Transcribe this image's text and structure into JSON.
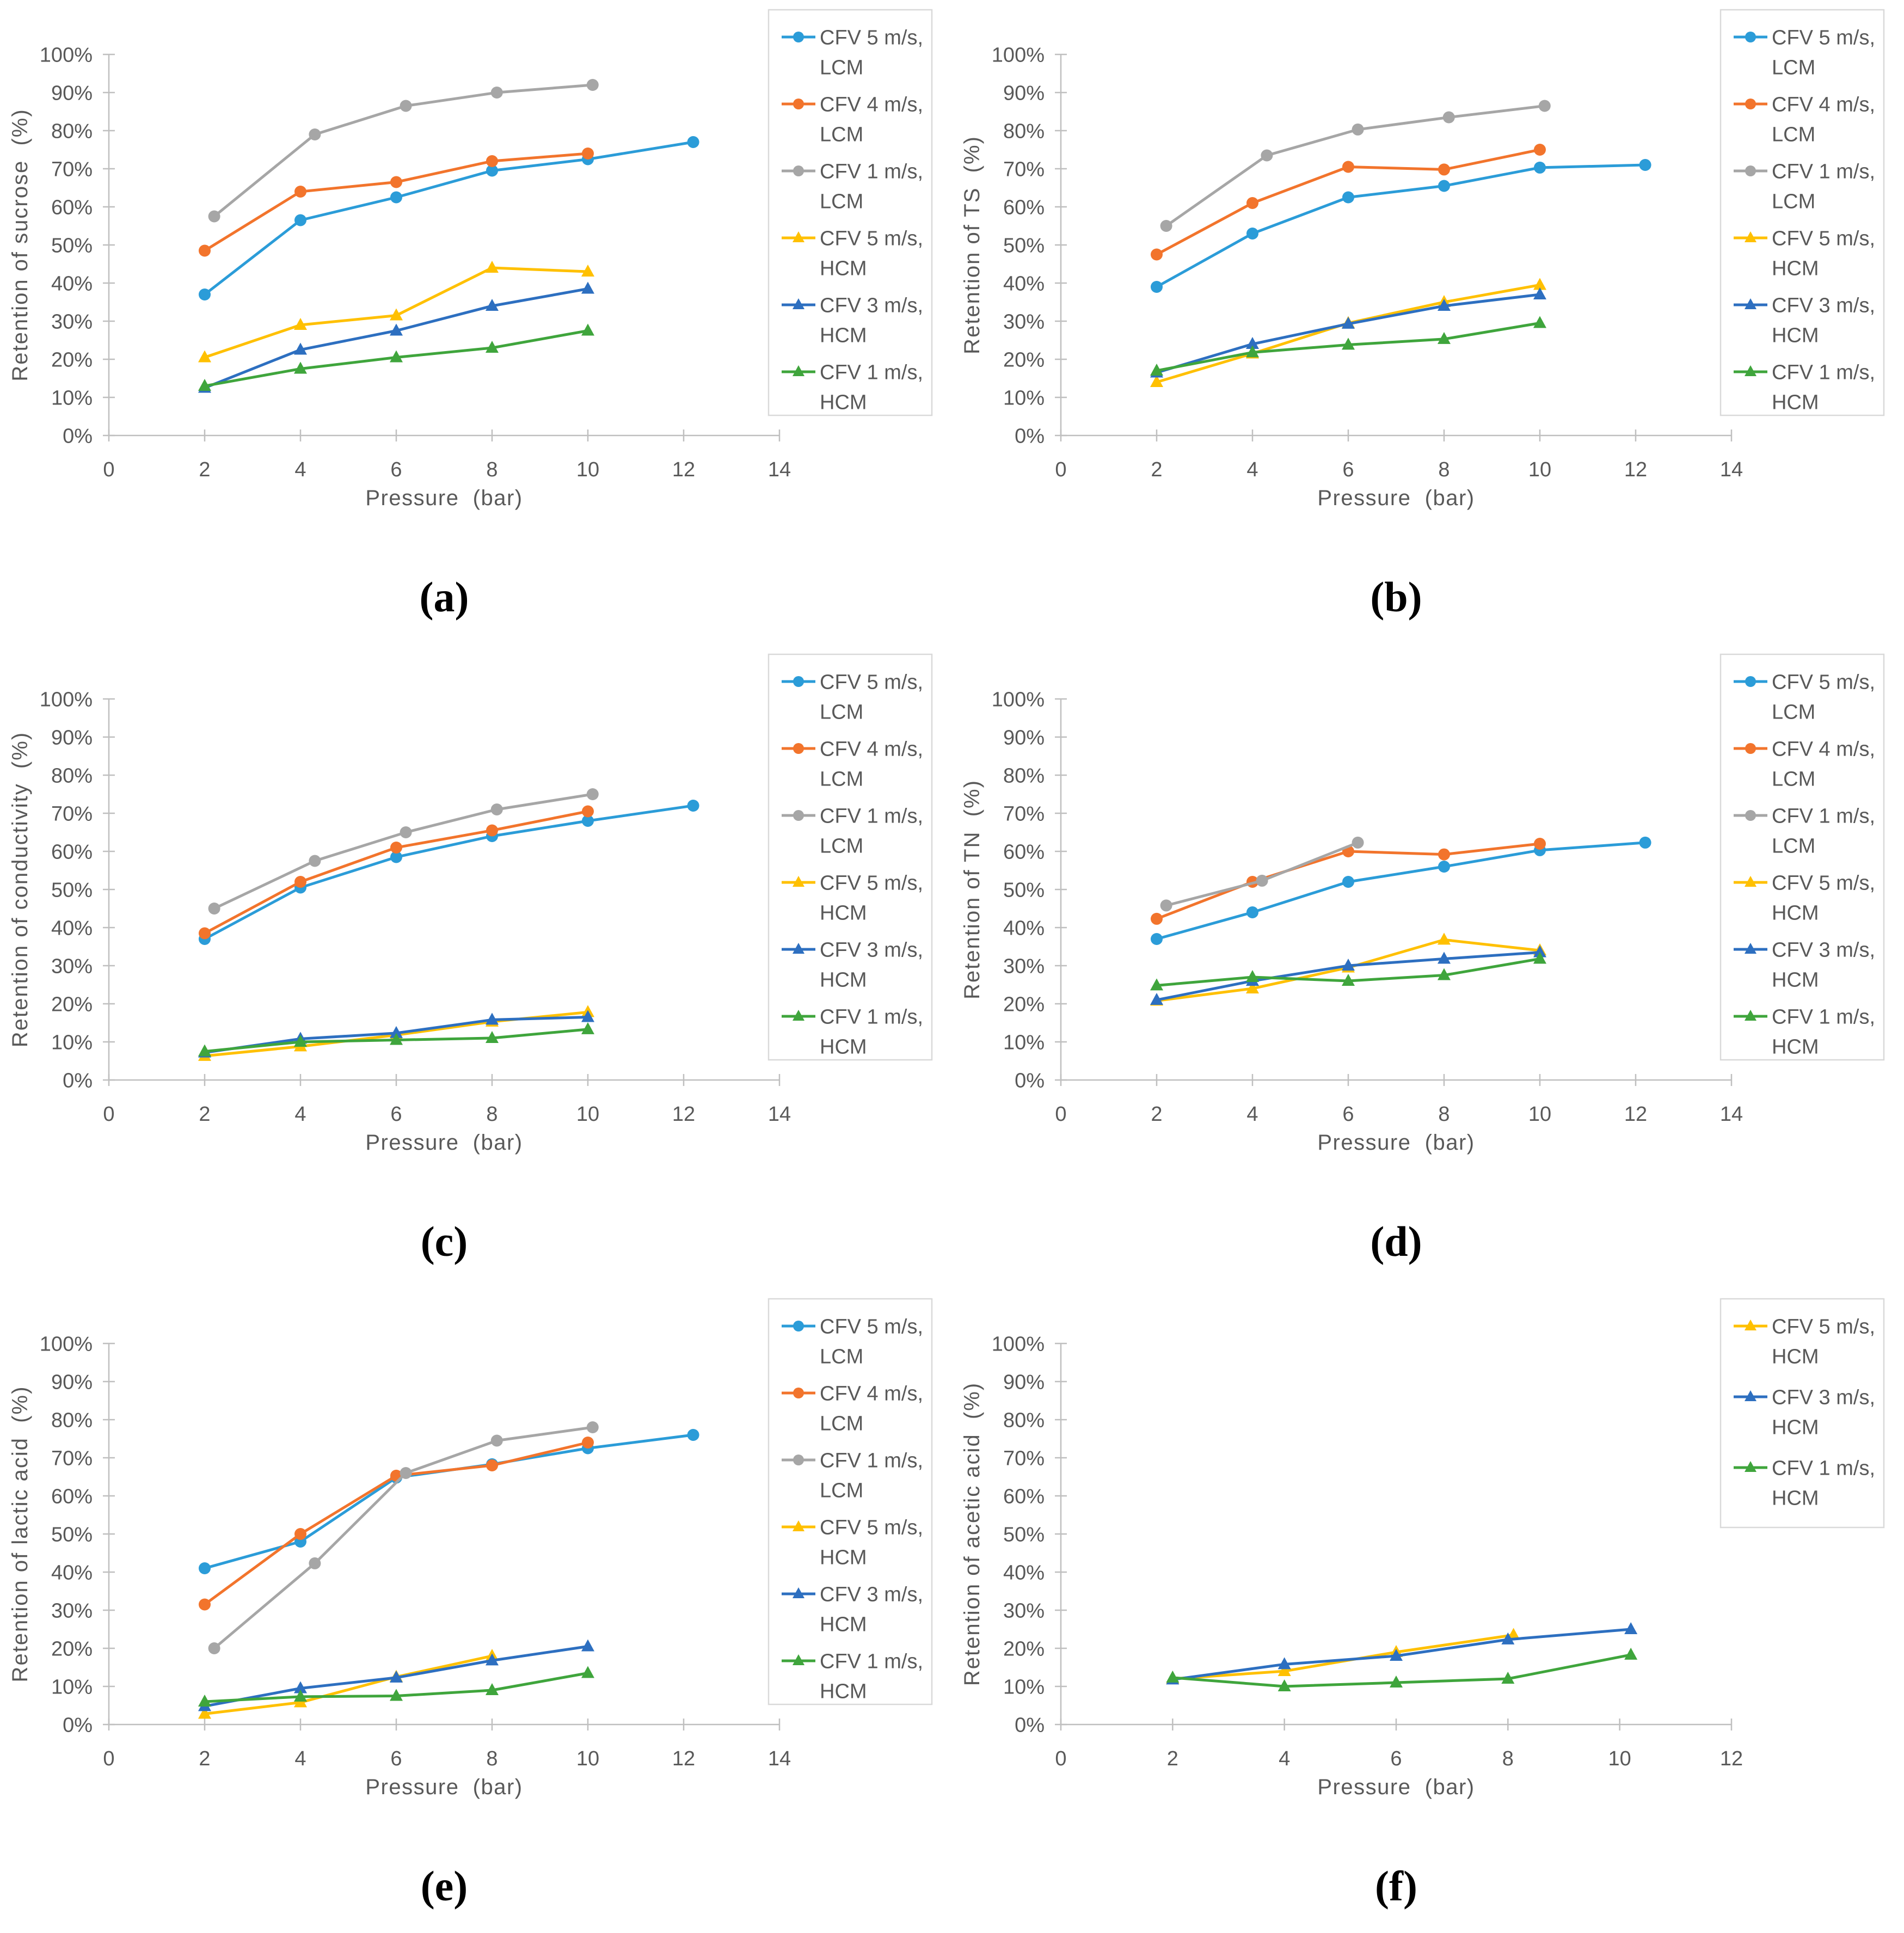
{
  "figure": {
    "description": "Six line charts of retention vs pressure for membrane filtration at different cross-flow velocities (CFV) with LCM and HCM membranes",
    "panel_letters": [
      "(a)",
      "(b)",
      "(c)",
      "(d)",
      "(e)",
      "(f)"
    ]
  },
  "style": {
    "background": "#FFFFFF",
    "axis_color": "#BFBFBF",
    "text_color": "#595959",
    "legend_border": "#D9D9D9",
    "caption_color": "#000000",
    "series_colors": {
      "cfv5_lcm": "#2B9CD8",
      "cfv4_lcm": "#F2742C",
      "cfv1_lcm": "#A6A6A6",
      "cfv5_hcm": "#FFC000",
      "cfv3_hcm": "#2D6FC0",
      "cfv1_hcm": "#3FA53C"
    }
  },
  "chart_data": [
    {
      "type": "line",
      "caption": "(a)",
      "ylabel": "Retention of sucrose  (%)",
      "xlabel": "Pressure  (bar)",
      "xlim": [
        0,
        14
      ],
      "ylim": [
        0,
        100
      ],
      "xticks": [
        "0",
        "2",
        "4",
        "6",
        "8",
        "10",
        "12",
        "14"
      ],
      "yticks": [
        "0%",
        "10%",
        "20%",
        "30%",
        "40%",
        "50%",
        "60%",
        "70%",
        "80%",
        "90%",
        "100%"
      ],
      "grid": false,
      "legend_position": "top-right",
      "series": [
        {
          "id": "cfv5-lcm",
          "name": "CFV 5 m/s, LCM",
          "label_line1": "CFV 5 m/s,",
          "label_line2": "LCM",
          "color": "#2B9CD8",
          "marker": "circle",
          "x": [
            2,
            4,
            6,
            8,
            10,
            12.2
          ],
          "y": [
            37,
            56.5,
            62.5,
            69.5,
            72.5,
            77
          ]
        },
        {
          "id": "cfv4-lcm",
          "name": "CFV 4 m/s, LCM",
          "label_line1": "CFV 4 m/s,",
          "label_line2": "LCM",
          "color": "#F2742C",
          "marker": "circle",
          "x": [
            2,
            4,
            6,
            8,
            10
          ],
          "y": [
            48.5,
            64,
            66.5,
            72,
            74
          ]
        },
        {
          "id": "cfv1-lcm",
          "name": "CFV 1 m/s, LCM",
          "label_line1": "CFV 1 m/s,",
          "label_line2": "LCM",
          "color": "#A6A6A6",
          "marker": "circle",
          "x": [
            2.2,
            4.3,
            6.2,
            8.1,
            10.1
          ],
          "y": [
            57.5,
            79,
            86.5,
            90,
            92
          ]
        },
        {
          "id": "cfv5-hcm",
          "name": "CFV 5 m/s, HCM",
          "label_line1": "CFV 5 m/s,",
          "label_line2": "HCM",
          "color": "#FFC000",
          "marker": "triangle",
          "x": [
            2,
            4,
            6,
            8,
            10
          ],
          "y": [
            20.5,
            29,
            31.5,
            44,
            43
          ]
        },
        {
          "id": "cfv3-hcm",
          "name": "CFV 3 m/s, HCM",
          "label_line1": "CFV 3 m/s,",
          "label_line2": "HCM",
          "color": "#2D6FC0",
          "marker": "triangle",
          "x": [
            2,
            4,
            6,
            8,
            10
          ],
          "y": [
            12.5,
            22.5,
            27.5,
            34,
            38.5
          ]
        },
        {
          "id": "cfv1-hcm",
          "name": "CFV 1 m/s, HCM",
          "label_line1": "CFV 1 m/s,",
          "label_line2": "HCM",
          "color": "#3FA53C",
          "marker": "triangle",
          "x": [
            2,
            4,
            6,
            8,
            10
          ],
          "y": [
            13,
            17.5,
            20.5,
            23,
            27.5
          ]
        }
      ]
    },
    {
      "type": "line",
      "caption": "(b)",
      "ylabel": "Retention of TS  (%)",
      "xlabel": "Pressure  (bar)",
      "xlim": [
        0,
        14
      ],
      "ylim": [
        0,
        100
      ],
      "xticks": [
        "0",
        "2",
        "4",
        "6",
        "8",
        "10",
        "12",
        "14"
      ],
      "yticks": [
        "0%",
        "10%",
        "20%",
        "30%",
        "40%",
        "50%",
        "60%",
        "70%",
        "80%",
        "90%",
        "100%"
      ],
      "grid": false,
      "legend_position": "top-right",
      "series": [
        {
          "id": "cfv5-lcm",
          "name": "CFV 5 m/s, LCM",
          "label_line1": "CFV 5 m/s,",
          "label_line2": "LCM",
          "color": "#2B9CD8",
          "marker": "circle",
          "x": [
            2,
            4,
            6,
            8,
            10,
            12.2
          ],
          "y": [
            39,
            53,
            62.5,
            65.5,
            70.3,
            71
          ]
        },
        {
          "id": "cfv4-lcm",
          "name": "CFV 4 m/s, LCM",
          "label_line1": "CFV 4 m/s,",
          "label_line2": "LCM",
          "color": "#F2742C",
          "marker": "circle",
          "x": [
            2,
            4,
            6,
            8,
            10
          ],
          "y": [
            47.5,
            61,
            70.5,
            69.8,
            75
          ]
        },
        {
          "id": "cfv1-lcm",
          "name": "CFV 1 m/s, LCM",
          "label_line1": "CFV 1 m/s,",
          "label_line2": "LCM",
          "color": "#A6A6A6",
          "marker": "circle",
          "x": [
            2.2,
            4.3,
            6.2,
            8.1,
            10.1
          ],
          "y": [
            55,
            73.5,
            80.3,
            83.5,
            86.5
          ]
        },
        {
          "id": "cfv5-hcm",
          "name": "CFV 5 m/s, HCM",
          "label_line1": "CFV 5 m/s,",
          "label_line2": "HCM",
          "color": "#FFC000",
          "marker": "triangle",
          "x": [
            2,
            4,
            6,
            8,
            10
          ],
          "y": [
            14,
            21.5,
            29.5,
            35,
            39.5
          ]
        },
        {
          "id": "cfv3-hcm",
          "name": "CFV 3 m/s, HCM",
          "label_line1": "CFV 3 m/s,",
          "label_line2": "HCM",
          "color": "#2D6FC0",
          "marker": "triangle",
          "x": [
            2,
            4,
            6,
            8,
            10
          ],
          "y": [
            16.5,
            24,
            29.3,
            34,
            37
          ]
        },
        {
          "id": "cfv1-hcm",
          "name": "CFV 1 m/s, HCM",
          "label_line1": "CFV 1 m/s,",
          "label_line2": "HCM",
          "color": "#3FA53C",
          "marker": "triangle",
          "x": [
            2,
            4,
            6,
            8,
            10
          ],
          "y": [
            17,
            21.8,
            23.8,
            25.3,
            29.5
          ]
        }
      ]
    },
    {
      "type": "line",
      "caption": "(c)",
      "ylabel": "Retention of conductivity  (%)",
      "xlabel": "Pressure  (bar)",
      "xlim": [
        0,
        14
      ],
      "ylim": [
        0,
        100
      ],
      "xticks": [
        "0",
        "2",
        "4",
        "6",
        "8",
        "10",
        "12",
        "14"
      ],
      "yticks": [
        "0%",
        "10%",
        "20%",
        "30%",
        "40%",
        "50%",
        "60%",
        "70%",
        "80%",
        "90%",
        "100%"
      ],
      "grid": false,
      "legend_position": "top-right",
      "series": [
        {
          "id": "cfv5-lcm",
          "name": "CFV 5 m/s, LCM",
          "label_line1": "CFV 5 m/s,",
          "label_line2": "LCM",
          "color": "#2B9CD8",
          "marker": "circle",
          "x": [
            2,
            4,
            6,
            8,
            10,
            12.2
          ],
          "y": [
            37,
            50.5,
            58.5,
            64,
            68,
            72
          ]
        },
        {
          "id": "cfv4-lcm",
          "name": "CFV 4 m/s, LCM",
          "label_line1": "CFV 4 m/s,",
          "label_line2": "LCM",
          "color": "#F2742C",
          "marker": "circle",
          "x": [
            2,
            4,
            6,
            8,
            10
          ],
          "y": [
            38.5,
            52,
            61,
            65.5,
            70.5
          ]
        },
        {
          "id": "cfv1-lcm",
          "name": "CFV 1 m/s, LCM",
          "label_line1": "CFV 1 m/s,",
          "label_line2": "LCM",
          "color": "#A6A6A6",
          "marker": "circle",
          "x": [
            2.2,
            4.3,
            6.2,
            8.1,
            10.1
          ],
          "y": [
            45,
            57.5,
            65,
            71,
            75
          ]
        },
        {
          "id": "cfv5-hcm",
          "name": "CFV 5 m/s, HCM",
          "label_line1": "CFV 5 m/s,",
          "label_line2": "HCM",
          "color": "#FFC000",
          "marker": "triangle",
          "x": [
            2,
            4,
            6,
            8,
            10
          ],
          "y": [
            6.3,
            8.8,
            11.8,
            15.3,
            17.8
          ]
        },
        {
          "id": "cfv3-hcm",
          "name": "CFV 3 m/s, HCM",
          "label_line1": "CFV 3 m/s,",
          "label_line2": "HCM",
          "color": "#2D6FC0",
          "marker": "triangle",
          "x": [
            2,
            4,
            6,
            8,
            10
          ],
          "y": [
            7.2,
            10.8,
            12.3,
            15.8,
            16.5
          ]
        },
        {
          "id": "cfv1-hcm",
          "name": "CFV 1 m/s, HCM",
          "label_line1": "CFV 1 m/s,",
          "label_line2": "HCM",
          "color": "#3FA53C",
          "marker": "triangle",
          "x": [
            2,
            4,
            6,
            8,
            10
          ],
          "y": [
            7.5,
            10,
            10.5,
            11,
            13.3
          ]
        }
      ]
    },
    {
      "type": "line",
      "caption": "(d)",
      "ylabel": "Retention of TN  (%)",
      "xlabel": "Pressure  (bar)",
      "xlim": [
        0,
        14
      ],
      "ylim": [
        0,
        100
      ],
      "xticks": [
        "0",
        "2",
        "4",
        "6",
        "8",
        "10",
        "12",
        "14"
      ],
      "yticks": [
        "0%",
        "10%",
        "20%",
        "30%",
        "40%",
        "50%",
        "60%",
        "70%",
        "80%",
        "90%",
        "100%"
      ],
      "grid": false,
      "legend_position": "top-right",
      "series": [
        {
          "id": "cfv5-lcm",
          "name": "CFV 5 m/s, LCM",
          "label_line1": "CFV 5 m/s,",
          "label_line2": "LCM",
          "color": "#2B9CD8",
          "marker": "circle",
          "x": [
            2,
            4,
            6,
            8,
            10,
            12.2
          ],
          "y": [
            37,
            44,
            52,
            56,
            60.3,
            62.3
          ]
        },
        {
          "id": "cfv4-lcm",
          "name": "CFV 4 m/s, LCM",
          "label_line1": "CFV 4 m/s,",
          "label_line2": "LCM",
          "color": "#F2742C",
          "marker": "circle",
          "x": [
            2,
            4,
            6,
            8,
            10
          ],
          "y": [
            42.3,
            52,
            60,
            59.2,
            62
          ]
        },
        {
          "id": "cfv1-lcm",
          "name": "CFV 1 m/s, LCM",
          "label_line1": "CFV 1 m/s,",
          "label_line2": "LCM",
          "color": "#A6A6A6",
          "marker": "circle",
          "x": [
            2.2,
            4.2,
            6.2
          ],
          "y": [
            45.8,
            52.3,
            62.3
          ]
        },
        {
          "id": "cfv5-hcm",
          "name": "CFV 5 m/s, HCM",
          "label_line1": "CFV 5 m/s,",
          "label_line2": "HCM",
          "color": "#FFC000",
          "marker": "triangle",
          "x": [
            2,
            4,
            6,
            8,
            10
          ],
          "y": [
            20.8,
            24,
            29.5,
            36.8,
            34
          ]
        },
        {
          "id": "cfv3-hcm",
          "name": "CFV 3 m/s, HCM",
          "label_line1": "CFV 3 m/s,",
          "label_line2": "HCM",
          "color": "#2D6FC0",
          "marker": "triangle",
          "x": [
            2,
            4,
            6,
            8,
            10
          ],
          "y": [
            21,
            26,
            30,
            31.8,
            33.5
          ]
        },
        {
          "id": "cfv1-hcm",
          "name": "CFV 1 m/s, HCM",
          "label_line1": "CFV 1 m/s,",
          "label_line2": "HCM",
          "color": "#3FA53C",
          "marker": "triangle",
          "x": [
            2,
            4,
            6,
            8,
            10
          ],
          "y": [
            24.8,
            27,
            26,
            27.5,
            31.8
          ]
        }
      ]
    },
    {
      "type": "line",
      "caption": "(e)",
      "ylabel": "Retention of lactic acid  (%)",
      "xlabel": "Pressure  (bar)",
      "xlim": [
        0,
        14
      ],
      "ylim": [
        0,
        100
      ],
      "xticks": [
        "0",
        "2",
        "4",
        "6",
        "8",
        "10",
        "12",
        "14"
      ],
      "yticks": [
        "0%",
        "10%",
        "20%",
        "30%",
        "40%",
        "50%",
        "60%",
        "70%",
        "80%",
        "90%",
        "100%"
      ],
      "grid": false,
      "legend_position": "top-right",
      "series": [
        {
          "id": "cfv5-lcm",
          "name": "CFV 5 m/s, LCM",
          "label_line1": "CFV 5 m/s,",
          "label_line2": "LCM",
          "color": "#2B9CD8",
          "marker": "circle",
          "x": [
            2,
            4,
            6,
            8,
            10,
            12.2
          ],
          "y": [
            41,
            48,
            64.8,
            68.3,
            72.5,
            76
          ]
        },
        {
          "id": "cfv4-lcm",
          "name": "CFV 4 m/s, LCM",
          "label_line1": "CFV 4 m/s,",
          "label_line2": "LCM",
          "color": "#F2742C",
          "marker": "circle",
          "x": [
            2,
            4,
            6,
            8,
            10
          ],
          "y": [
            31.5,
            50,
            65.3,
            68,
            74
          ]
        },
        {
          "id": "cfv1-lcm",
          "name": "CFV 1 m/s, LCM",
          "label_line1": "CFV 1 m/s,",
          "label_line2": "LCM",
          "color": "#A6A6A6",
          "marker": "circle",
          "x": [
            2.2,
            4.3,
            6.2,
            8.1,
            10.1
          ],
          "y": [
            20,
            42.3,
            66,
            74.5,
            78
          ]
        },
        {
          "id": "cfv5-hcm",
          "name": "CFV 5 m/s, HCM",
          "label_line1": "CFV 5 m/s,",
          "label_line2": "HCM",
          "color": "#FFC000",
          "marker": "triangle",
          "x": [
            2,
            4,
            6,
            8
          ],
          "y": [
            2.8,
            5.8,
            12.5,
            18
          ]
        },
        {
          "id": "cfv3-hcm",
          "name": "CFV 3 m/s, HCM",
          "label_line1": "CFV 3 m/s,",
          "label_line2": "HCM",
          "color": "#2D6FC0",
          "marker": "triangle",
          "x": [
            2,
            4,
            6,
            8,
            10
          ],
          "y": [
            4.8,
            9.5,
            12.3,
            16.8,
            20.5
          ]
        },
        {
          "id": "cfv1-hcm",
          "name": "CFV 1 m/s, HCM",
          "label_line1": "CFV 1 m/s,",
          "label_line2": "HCM",
          "color": "#3FA53C",
          "marker": "triangle",
          "x": [
            2,
            4,
            6,
            8,
            10
          ],
          "y": [
            6,
            7.3,
            7.5,
            9,
            13.5
          ]
        }
      ]
    },
    {
      "type": "line",
      "caption": "(f)",
      "ylabel": "Retention of acetic acid  (%)",
      "xlabel": "Pressure  (bar)",
      "xlim": [
        0,
        12
      ],
      "ylim": [
        0,
        100
      ],
      "xticks": [
        "0",
        "2",
        "4",
        "6",
        "8",
        "10",
        "12"
      ],
      "yticks": [
        "0%",
        "10%",
        "20%",
        "30%",
        "40%",
        "50%",
        "60%",
        "70%",
        "80%",
        "90%",
        "100%"
      ],
      "grid": false,
      "legend_position": "top-right",
      "series": [
        {
          "id": "cfv5-hcm",
          "name": "CFV 5 m/s, HCM",
          "label_line1": "CFV 5 m/s,",
          "label_line2": "HCM",
          "color": "#FFC000",
          "marker": "triangle",
          "x": [
            2,
            4,
            6,
            8.1
          ],
          "y": [
            12,
            14,
            19,
            23.5
          ]
        },
        {
          "id": "cfv3-hcm",
          "name": "CFV 3 m/s, HCM",
          "label_line1": "CFV 3 m/s,",
          "label_line2": "HCM",
          "color": "#2D6FC0",
          "marker": "triangle",
          "x": [
            2,
            4,
            6,
            8,
            10.2
          ],
          "y": [
            11.8,
            15.8,
            18,
            22.3,
            25
          ]
        },
        {
          "id": "cfv1-hcm",
          "name": "CFV 1 m/s, HCM",
          "label_line1": "CFV 1 m/s,",
          "label_line2": "HCM",
          "color": "#3FA53C",
          "marker": "triangle",
          "x": [
            2,
            4,
            6,
            8,
            10.2
          ],
          "y": [
            12.3,
            10,
            11,
            12,
            18.3
          ]
        }
      ]
    }
  ]
}
